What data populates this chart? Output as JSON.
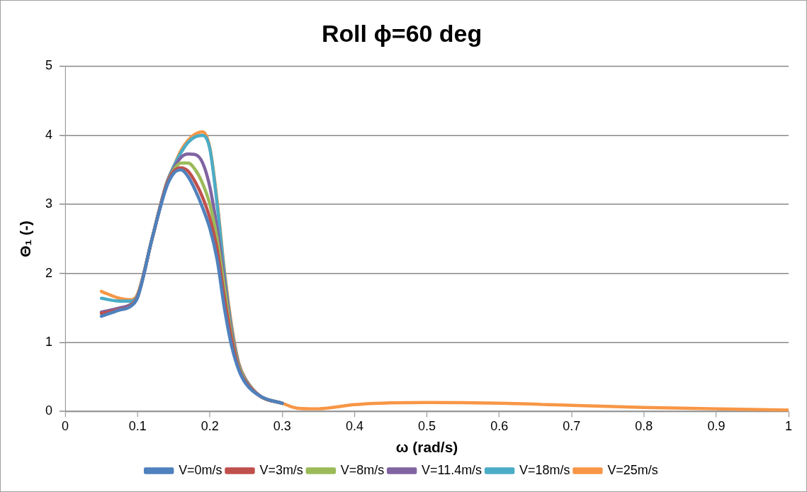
{
  "chart_data": {
    "type": "line",
    "title": "Roll ϕ=60 deg",
    "xlabel": "ω (rad/s)",
    "ylabel": "Θ₁ (-)",
    "x": [
      0.05,
      0.075,
      0.09,
      0.1,
      0.12,
      0.14,
      0.15,
      0.16,
      0.17,
      0.18,
      0.19,
      0.2,
      0.21,
      0.22,
      0.23,
      0.24,
      0.25,
      0.27,
      0.3,
      0.32,
      0.35,
      0.4,
      0.5,
      0.6,
      0.7,
      0.8,
      0.9,
      1.0
    ],
    "series": [
      {
        "name": "V=0m/s",
        "color": "#4f81bd",
        "values": [
          1.38,
          1.47,
          1.52,
          1.65,
          2.5,
          3.25,
          3.45,
          3.5,
          3.4,
          3.2,
          2.95,
          2.65,
          2.2,
          1.5,
          0.95,
          0.6,
          0.4,
          0.22,
          0.12,
          null,
          null,
          null,
          null,
          null,
          null,
          null,
          null,
          null
        ]
      },
      {
        "name": "V=3m/s",
        "color": "#c0504d",
        "values": [
          1.42,
          1.48,
          1.53,
          1.66,
          2.5,
          3.27,
          3.48,
          3.53,
          3.48,
          3.32,
          3.1,
          2.8,
          2.35,
          1.65,
          1.05,
          0.62,
          0.42,
          0.22,
          0.12,
          null,
          null,
          null,
          null,
          null,
          null,
          null,
          null,
          null
        ]
      },
      {
        "name": "V=8m/s",
        "color": "#9bbb59",
        "values": [
          null,
          null,
          1.53,
          1.66,
          2.5,
          3.28,
          3.5,
          3.6,
          3.6,
          3.5,
          3.3,
          3.0,
          2.5,
          1.8,
          1.1,
          0.65,
          0.43,
          0.22,
          0.12,
          null,
          null,
          null,
          null,
          null,
          null,
          null,
          null,
          null
        ]
      },
      {
        "name": "V=11.4m/s",
        "color": "#8064a2",
        "values": [
          1.44,
          1.5,
          1.55,
          1.67,
          2.5,
          3.3,
          3.52,
          3.68,
          3.73,
          3.72,
          3.6,
          3.25,
          2.65,
          1.9,
          1.15,
          0.67,
          0.44,
          0.22,
          0.12,
          null,
          null,
          null,
          null,
          null,
          null,
          null,
          null,
          null
        ]
      },
      {
        "name": "V=18m/s",
        "color": "#4bacc6",
        "values": [
          1.64,
          1.6,
          1.6,
          1.68,
          2.5,
          3.3,
          3.55,
          3.75,
          3.9,
          3.98,
          4.0,
          3.8,
          3.0,
          2.0,
          1.2,
          0.68,
          0.45,
          0.22,
          0.12,
          null,
          null,
          null,
          null,
          null,
          null,
          null,
          null,
          null
        ]
      },
      {
        "name": "V=25m/s",
        "color": "#f79646",
        "values": [
          1.74,
          1.64,
          1.62,
          1.7,
          2.5,
          3.3,
          3.55,
          3.78,
          3.93,
          4.02,
          4.05,
          3.82,
          3.05,
          2.05,
          1.25,
          0.7,
          0.46,
          0.22,
          0.12,
          0.05,
          0.04,
          0.1,
          0.13,
          0.12,
          0.09,
          0.06,
          0.04,
          0.02
        ]
      }
    ],
    "xlim": [
      0,
      1
    ],
    "xticks": [
      0,
      0.1,
      0.2,
      0.3,
      0.4,
      0.5,
      0.6,
      0.7,
      0.8,
      0.9,
      1
    ],
    "ylim": [
      0,
      5
    ],
    "yticks": [
      0,
      1,
      2,
      3,
      4,
      5
    ],
    "grid": "y",
    "legend": "bottom",
    "marker": "none",
    "line_style": "solid"
  }
}
